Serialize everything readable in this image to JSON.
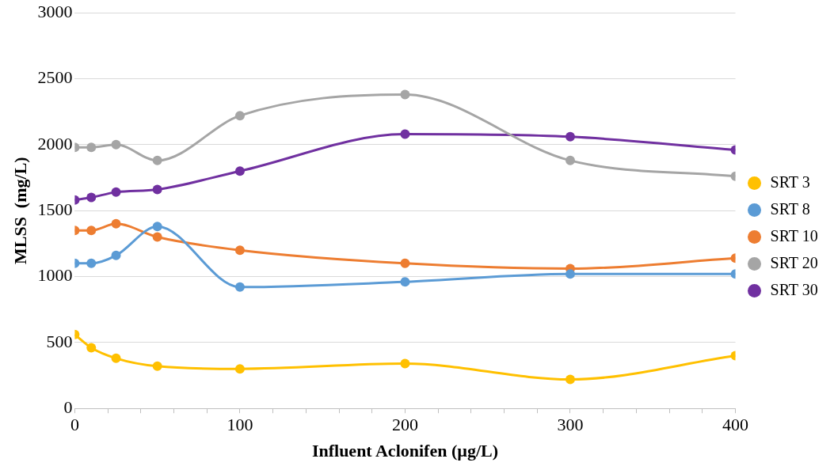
{
  "chart_data": {
    "type": "line",
    "xlabel": "Influent Aclonifen (µg/L)",
    "ylabel": "MLSS  (mg/L)",
    "x": [
      0,
      10,
      25,
      50,
      100,
      200,
      300,
      400
    ],
    "xlim": [
      0,
      400
    ],
    "xticks": [
      0,
      {
        "value": 20,
        "label": null
      },
      {
        "value": 40,
        "label": null
      },
      {
        "value": 60,
        "label": null
      },
      {
        "value": 80,
        "label": null
      },
      100,
      {
        "value": 120,
        "label": null
      },
      {
        "value": 140,
        "label": null
      },
      {
        "value": 160,
        "label": null
      },
      {
        "value": 180,
        "label": null
      },
      200,
      {
        "value": 220,
        "label": null
      },
      {
        "value": 240,
        "label": null
      },
      {
        "value": 260,
        "label": null
      },
      {
        "value": 280,
        "label": null
      },
      300,
      {
        "value": 320,
        "label": null
      },
      {
        "value": 340,
        "label": null
      },
      {
        "value": 360,
        "label": null
      },
      {
        "value": 380,
        "label": null
      },
      400
    ],
    "ylim": [
      0,
      3000
    ],
    "yticks": [
      0,
      500,
      1000,
      1500,
      2000,
      2500,
      3000
    ],
    "grid": "y",
    "legend": "right",
    "marker": "circle",
    "line_style": "solid",
    "series": [
      {
        "name": "SRT 3",
        "color": "#ffc000",
        "values": [
          560,
          460,
          380,
          320,
          300,
          340,
          220,
          400
        ]
      },
      {
        "name": "SRT 8",
        "color": "#5b9bd5",
        "values": [
          1100,
          1100,
          1160,
          1380,
          920,
          960,
          1020,
          1020
        ]
      },
      {
        "name": "SRT 10",
        "color": "#ed7d31",
        "values": [
          1350,
          1350,
          1400,
          1300,
          1200,
          1100,
          1060,
          1140
        ]
      },
      {
        "name": "SRT 20",
        "color": "#a5a5a5",
        "values": [
          1980,
          1980,
          2000,
          1880,
          2220,
          2380,
          1880,
          1760
        ]
      },
      {
        "name": "SRT 30",
        "color": "#7030a0",
        "values": [
          1580,
          1600,
          1640,
          1660,
          1800,
          2080,
          2060,
          1960
        ]
      }
    ]
  }
}
